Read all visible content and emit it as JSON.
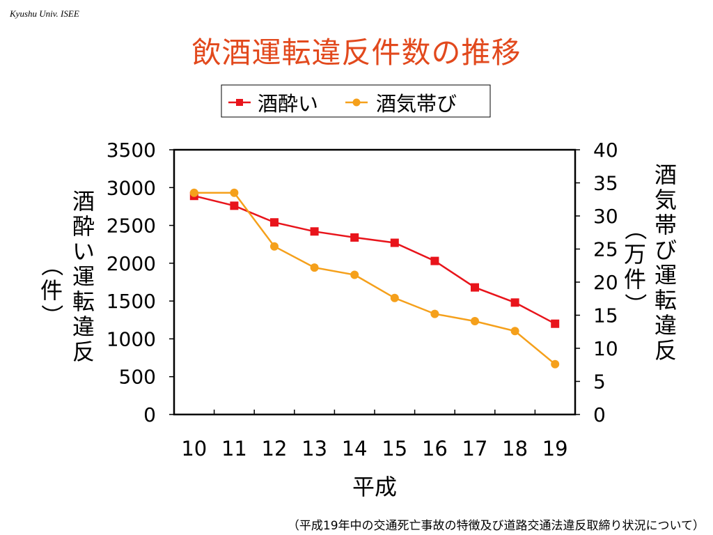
{
  "slide": {
    "credit": "Kyushu Univ. ISEE",
    "title": "飲酒運転違反件数の推移",
    "footnote": "（平成19年中の交通死亡事故の特徴及び道路交通法違反取締り状況について）"
  },
  "chart_data": {
    "type": "line",
    "categories": [
      "10",
      "11",
      "12",
      "13",
      "14",
      "15",
      "16",
      "17",
      "18",
      "19"
    ],
    "xlabel": "平成",
    "ylabel_left": "酒酔い運転違反（件）",
    "ylabel_right": "酒気帯び運転違反（万件）",
    "y_left": {
      "min": 0,
      "max": 3500,
      "ticks": [
        "0",
        "500",
        "1000",
        "1500",
        "2000",
        "2500",
        "3000",
        "3500"
      ]
    },
    "y_right": {
      "min": 0,
      "max": 40,
      "ticks": [
        "0",
        "5",
        "10",
        "15",
        "20",
        "25",
        "30",
        "35",
        "40"
      ]
    },
    "legend_position": "top-center",
    "grid": false,
    "series": [
      {
        "name": "酒酔い",
        "axis": "left",
        "marker": "square",
        "color": "#e8141b",
        "values": [
          2890,
          2760,
          2540,
          2420,
          2340,
          2270,
          2030,
          1680,
          1480,
          1200
        ]
      },
      {
        "name": "酒気帯び",
        "axis": "right",
        "marker": "circle",
        "color": "#f5a01b",
        "values": [
          33.5,
          33.5,
          25.4,
          22.2,
          21.1,
          17.6,
          15.2,
          14.1,
          12.6,
          7.6
        ]
      }
    ]
  }
}
